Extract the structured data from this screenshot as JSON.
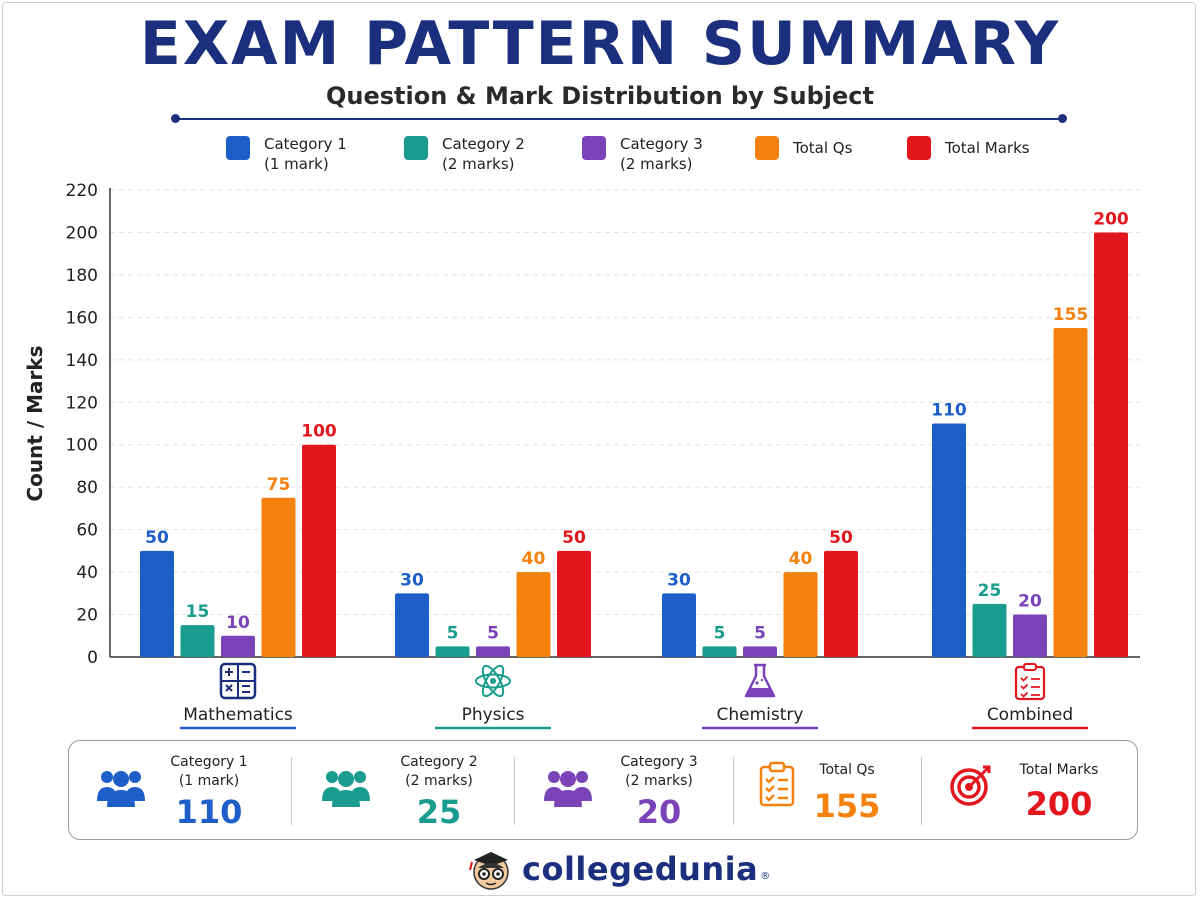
{
  "header": {
    "title": "EXAM PATTERN SUMMARY",
    "subtitle": "Question & Mark Distribution by Subject"
  },
  "colors": {
    "cat1": "#1e5ec9",
    "cat2": "#1a9c8e",
    "cat3": "#7b43b8",
    "total_qs": "#f5820f",
    "total_marks": "#e3161e",
    "title": "#1b2f7e"
  },
  "legend": [
    {
      "label": "Category 1",
      "sub": "(1 mark)",
      "color": "#1e5ec9"
    },
    {
      "label": "Category 2",
      "sub": "(2 marks)",
      "color": "#1a9c8e"
    },
    {
      "label": "Category 3",
      "sub": "(2 marks)",
      "color": "#7b43b8"
    },
    {
      "label": "Total Qs",
      "sub": "",
      "color": "#f5820f"
    },
    {
      "label": "Total Marks",
      "sub": "",
      "color": "#e3161e"
    }
  ],
  "chart_data": {
    "type": "bar",
    "ylabel": "Count / Marks",
    "xlabel": "",
    "ylim": [
      0,
      220
    ],
    "yticks": [
      0,
      20,
      40,
      60,
      80,
      100,
      120,
      140,
      160,
      180,
      200,
      220
    ],
    "grid": true,
    "legend_position": "top",
    "categories": [
      "Mathematics",
      "Physics",
      "Chemistry",
      "Combined"
    ],
    "category_icons": [
      "calculator-icon",
      "atom-icon",
      "flask-icon",
      "clipboard-icon"
    ],
    "series": [
      {
        "name": "Category 1 (1 mark)",
        "color": "#1e5ec9",
        "values": [
          50,
          30,
          30,
          110
        ]
      },
      {
        "name": "Category 2 (2 marks)",
        "color": "#1a9c8e",
        "values": [
          15,
          5,
          5,
          25
        ]
      },
      {
        "name": "Category 3 (2 marks)",
        "color": "#7b43b8",
        "values": [
          10,
          5,
          5,
          20
        ]
      },
      {
        "name": "Total Qs",
        "color": "#f5820f",
        "values": [
          75,
          40,
          40,
          155
        ]
      },
      {
        "name": "Total Marks",
        "color": "#e3161e",
        "values": [
          100,
          50,
          50,
          200
        ]
      }
    ]
  },
  "summary": [
    {
      "label": "Category 1",
      "sub": "(1 mark)",
      "value": "110",
      "icon": "users-icon",
      "color": "#1e5ec9"
    },
    {
      "label": "Category 2",
      "sub": "(2 marks)",
      "value": "25",
      "icon": "users-icon",
      "color": "#1a9c8e"
    },
    {
      "label": "Category 3",
      "sub": "(2 marks)",
      "value": "20",
      "icon": "users-icon",
      "color": "#7b43b8"
    },
    {
      "label": "Total Qs",
      "sub": "",
      "value": "155",
      "icon": "checklist-icon",
      "color": "#f5820f"
    },
    {
      "label": "Total Marks",
      "sub": "",
      "value": "200",
      "icon": "target-icon",
      "color": "#e3161e"
    }
  ],
  "brand": {
    "name": "collegedunia",
    "reg": "®"
  }
}
